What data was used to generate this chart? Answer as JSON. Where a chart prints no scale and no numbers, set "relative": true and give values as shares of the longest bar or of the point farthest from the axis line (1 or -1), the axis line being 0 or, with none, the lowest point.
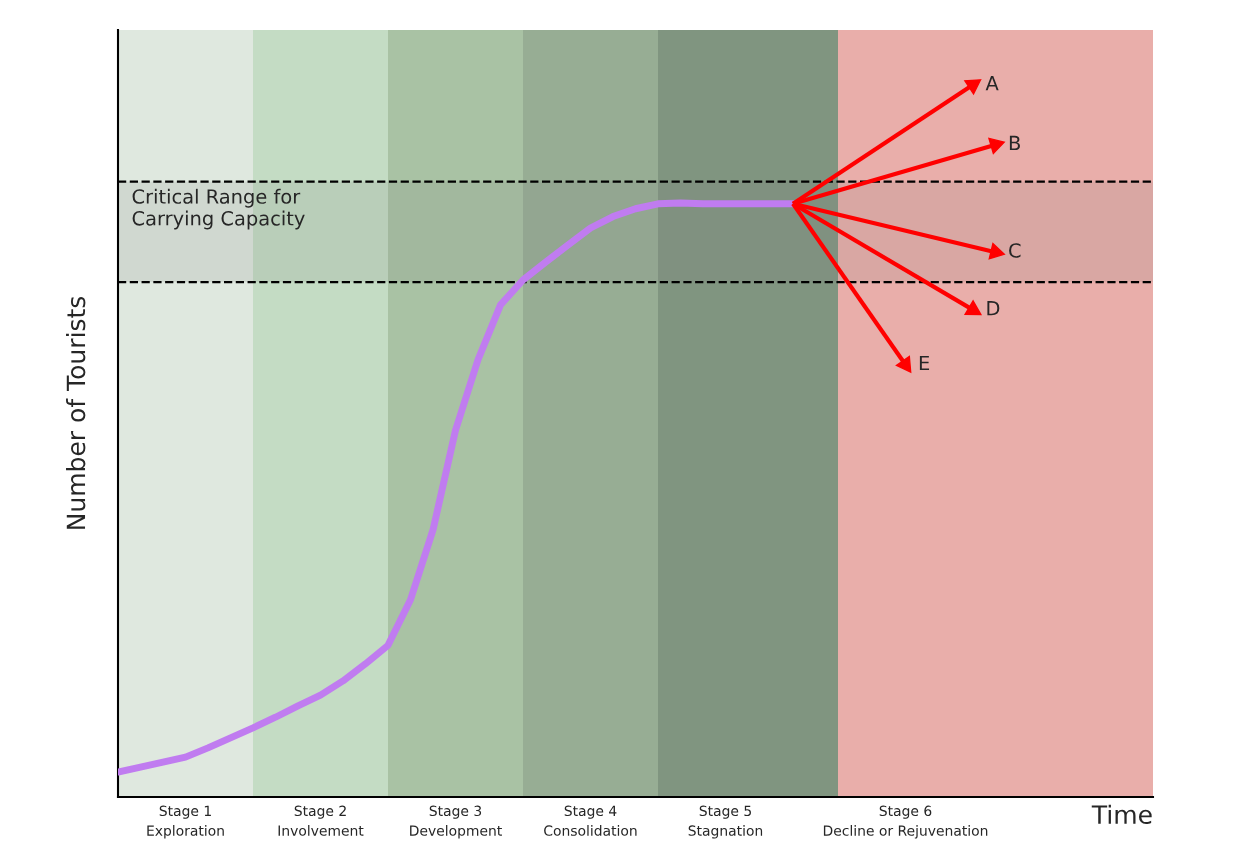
{
  "chart_data": {
    "type": "line",
    "relative": true,
    "xlabel": "Time",
    "ylabel": "Number of Tourists",
    "categories": [
      null,
      null,
      null,
      "Stage 1\nExploration",
      null,
      null,
      null,
      null,
      null,
      "Stage 2\nInvolvement",
      null,
      null,
      null,
      null,
      null,
      "Stage 3\nDevelopment",
      null,
      null,
      null,
      null,
      null,
      "Stage 4\nConsolidation",
      null,
      null,
      null,
      null,
      null,
      "Stage 5\nStagnation",
      null,
      null,
      null,
      null,
      null,
      null,
      null,
      "Stage 6\nDecline or Rejuvenation",
      null,
      null,
      null,
      null,
      null,
      null,
      null,
      null,
      null,
      null,
      null
    ],
    "series": [
      {
        "color": "#c07cf0",
        "values": [
          0.035,
          0.042,
          0.049,
          0.056,
          0.069,
          0.083,
          0.097,
          0.112,
          0.128,
          0.143,
          0.163,
          0.187,
          0.213,
          0.277,
          0.375,
          0.515,
          0.614,
          0.691,
          0.726,
          0.751,
          0.775,
          0.799,
          0.815,
          0.826,
          0.833,
          0.834,
          0.833,
          0.833,
          0.833,
          0.833,
          0.833,
          null,
          null,
          null,
          null,
          null,
          null,
          null,
          null,
          null,
          null,
          null,
          null,
          null,
          null,
          null,
          null
        ]
      },
      {
        "name": "A",
        "type": "line",
        "color": "#ff0000",
        "values": [
          null,
          null,
          null,
          null,
          null,
          null,
          null,
          null,
          null,
          null,
          null,
          null,
          null,
          null,
          null,
          null,
          null,
          null,
          null,
          null,
          null,
          null,
          null,
          null,
          null,
          null,
          null,
          null,
          null,
          null,
          0.833,
          null,
          null,
          null,
          null,
          null,
          null,
          null,
          1.0,
          null,
          null,
          null,
          null,
          null,
          null,
          null,
          null
        ]
      },
      {
        "name": "B",
        "type": "line",
        "color": "#ff0000",
        "values": [
          null,
          null,
          null,
          null,
          null,
          null,
          null,
          null,
          null,
          null,
          null,
          null,
          null,
          null,
          null,
          null,
          null,
          null,
          null,
          null,
          null,
          null,
          null,
          null,
          null,
          null,
          null,
          null,
          null,
          null,
          0.833,
          null,
          null,
          null,
          null,
          null,
          null,
          null,
          null,
          0.916,
          null,
          null,
          null,
          null,
          null,
          null,
          null
        ]
      },
      {
        "name": "C",
        "type": "line",
        "color": "#ff0000",
        "values": [
          null,
          null,
          null,
          null,
          null,
          null,
          null,
          null,
          null,
          null,
          null,
          null,
          null,
          null,
          null,
          null,
          null,
          null,
          null,
          null,
          null,
          null,
          null,
          null,
          null,
          null,
          null,
          null,
          null,
          null,
          0.833,
          null,
          null,
          null,
          null,
          null,
          null,
          null,
          null,
          0.765,
          null,
          null,
          null,
          null,
          null,
          null,
          null
        ]
      },
      {
        "name": "D",
        "type": "line",
        "color": "#ff0000",
        "values": [
          null,
          null,
          null,
          null,
          null,
          null,
          null,
          null,
          null,
          null,
          null,
          null,
          null,
          null,
          null,
          null,
          null,
          null,
          null,
          null,
          null,
          null,
          null,
          null,
          null,
          null,
          null,
          null,
          null,
          null,
          0.833,
          null,
          null,
          null,
          null,
          null,
          null,
          null,
          0.684,
          null,
          null,
          null,
          null,
          null,
          null,
          null,
          null
        ]
      },
      {
        "name": "E",
        "type": "line",
        "color": "#ff0000",
        "values": [
          null,
          null,
          null,
          null,
          null,
          null,
          null,
          null,
          null,
          null,
          null,
          null,
          null,
          null,
          null,
          null,
          null,
          null,
          null,
          null,
          null,
          null,
          null,
          null,
          null,
          null,
          null,
          null,
          null,
          null,
          0.833,
          null,
          null,
          null,
          null,
          0.607,
          null,
          null,
          null,
          null,
          null,
          null,
          null,
          null,
          null,
          null,
          null
        ]
      }
    ],
    "bands": [
      {
        "axis": "y",
        "from": 0.723,
        "to": 0.864,
        "label": "Critical Range for\nCarrying Capacity",
        "color": "#7f7f7f"
      }
    ],
    "ref_lines": [
      {
        "axis": "y",
        "value": 0.723,
        "color": "#000000",
        "line_style": "dashed"
      },
      {
        "axis": "y",
        "value": 0.864,
        "color": "#000000",
        "line_style": "dashed"
      }
    ],
    "grid": false
  }
}
